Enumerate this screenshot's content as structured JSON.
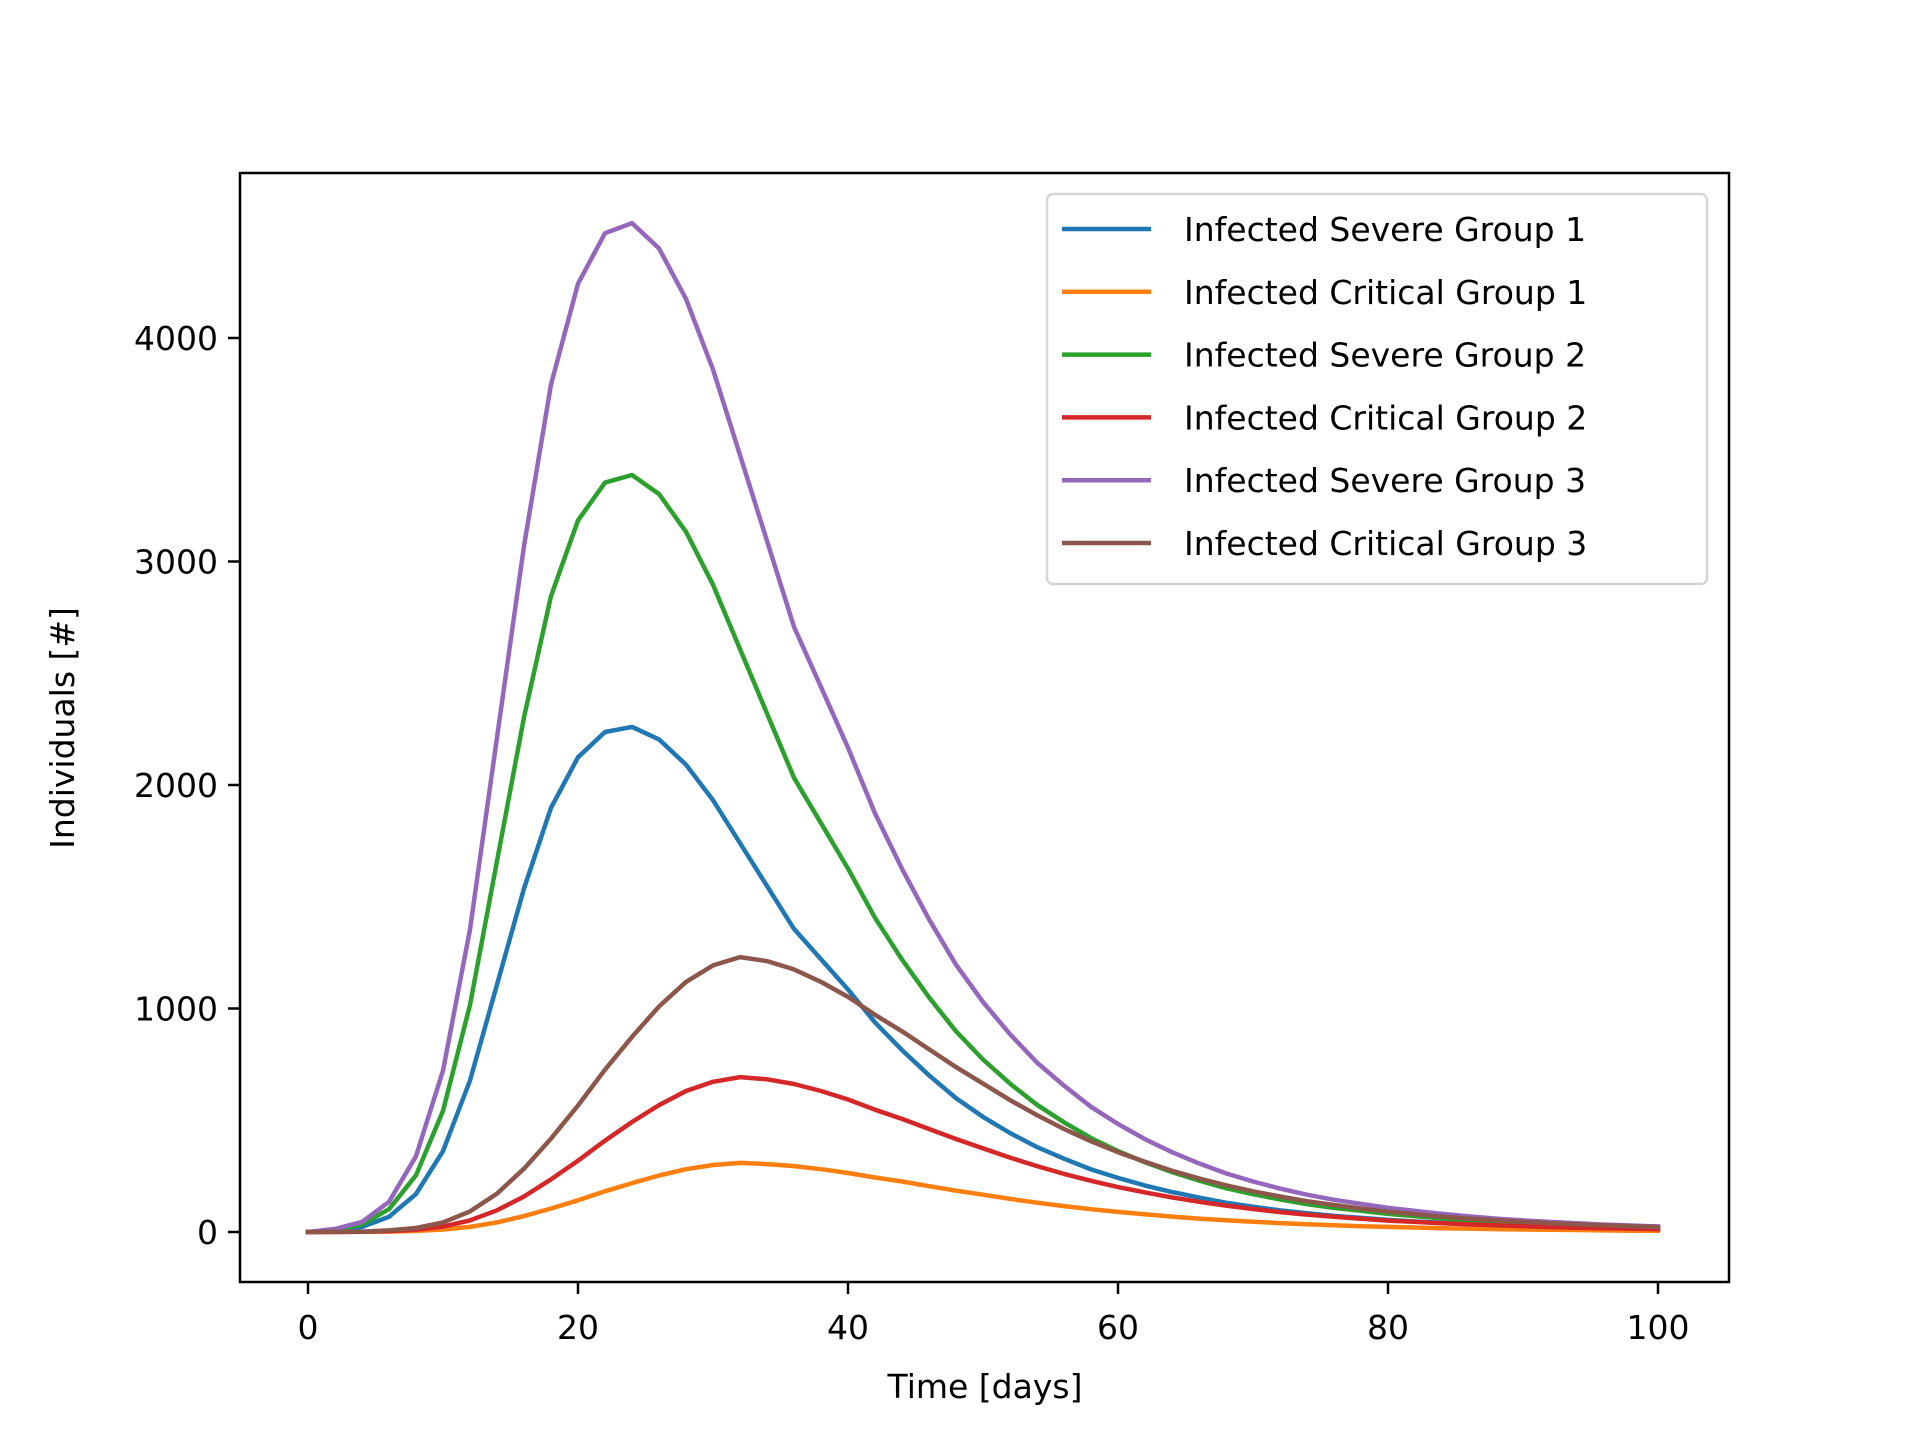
{
  "chart_data": {
    "type": "line",
    "title": "",
    "xlabel": "Time [days]",
    "ylabel": "Individuals [#]",
    "xlim": [
      -5,
      105
    ],
    "ylim": [
      -230,
      4730
    ],
    "xticks": [
      0,
      20,
      40,
      60,
      80,
      100
    ],
    "yticks": [
      0,
      1000,
      2000,
      3000,
      4000
    ],
    "grid": false,
    "legend_position": "top-right",
    "x": [
      0,
      2,
      4,
      6,
      8,
      10,
      12,
      14,
      16,
      18,
      20,
      22,
      24,
      26,
      28,
      30,
      32,
      34,
      36,
      38,
      40,
      42,
      44,
      46,
      48,
      50,
      52,
      54,
      56,
      58,
      60,
      62,
      64,
      66,
      68,
      70,
      72,
      74,
      76,
      78,
      80,
      82,
      84,
      86,
      88,
      90,
      92,
      94,
      96,
      98,
      100
    ],
    "series": [
      {
        "name": "Infected Severe Group 1",
        "color": "#1f77b4",
        "values": [
          0,
          7,
          23,
          68,
          170,
          362,
          678,
          1107,
          1537,
          1898,
          2124,
          2237,
          2260,
          2204,
          2091,
          1932,
          1740,
          1548,
          1356,
          1220,
          1085,
          938,
          814,
          701,
          599,
          515,
          443,
          380,
          328,
          280,
          242,
          208,
          179,
          154,
          131,
          113,
          97,
          84,
          72,
          63,
          54,
          47,
          41,
          35,
          30,
          26,
          22,
          19,
          17,
          14,
          12
        ]
      },
      {
        "name": "Infected Critical Group 1",
        "color": "#ff7f0e",
        "values": [
          0,
          0,
          1,
          2,
          5,
          11,
          23,
          43,
          71,
          105,
          142,
          182,
          219,
          253,
          281,
          300,
          309,
          304,
          295,
          281,
          264,
          244,
          226,
          205,
          185,
          167,
          148,
          131,
          116,
          102,
          90,
          79,
          69,
          60,
          53,
          46,
          40,
          35,
          30,
          26,
          23,
          20,
          17,
          15,
          13,
          11,
          10,
          9,
          7,
          6,
          6
        ]
      },
      {
        "name": "Infected Severe Group 2",
        "color": "#2ca02c",
        "values": [
          0,
          10,
          34,
          102,
          254,
          542,
          1016,
          1660,
          2303,
          2845,
          3184,
          3353,
          3387,
          3302,
          3133,
          2896,
          2608,
          2320,
          2032,
          1829,
          1626,
          1406,
          1219,
          1050,
          898,
          772,
          664,
          569,
          491,
          420,
          362,
          312,
          268,
          230,
          196,
          169,
          146,
          125,
          108,
          95,
          81,
          71,
          61,
          52,
          45,
          39,
          34,
          29,
          25,
          22,
          19
        ]
      },
      {
        "name": "Infected Critical Group 2",
        "color": "#d62728",
        "values": [
          0,
          0,
          1,
          4,
          10,
          24,
          52,
          97,
          159,
          236,
          319,
          409,
          492,
          568,
          631,
          672,
          693,
          683,
          662,
          631,
          593,
          547,
          506,
          461,
          416,
          374,
          333,
          295,
          260,
          229,
          201,
          177,
          155,
          135,
          118,
          103,
          89,
          78,
          68,
          59,
          51,
          45,
          39,
          34,
          30,
          26,
          22,
          19,
          17,
          15,
          12
        ]
      },
      {
        "name": "Infected Severe Group 3",
        "color": "#9467bd",
        "values": [
          0,
          14,
          45,
          135,
          339,
          722,
          1354,
          2212,
          3070,
          3792,
          4243,
          4469,
          4514,
          4401,
          4175,
          3859,
          3476,
          3092,
          2708,
          2438,
          2167,
          1873,
          1625,
          1399,
          1196,
          1029,
          885,
          758,
          655,
          560,
          483,
          415,
          357,
          307,
          262,
          226,
          194,
          167,
          144,
          126,
          108,
          95,
          81,
          70,
          60,
          52,
          45,
          39,
          33,
          29,
          25
        ]
      },
      {
        "name": "Infected Critical Group 3",
        "color": "#8c564b",
        "values": [
          0,
          1,
          2,
          7,
          18,
          43,
          92,
          172,
          283,
          418,
          566,
          726,
          873,
          1009,
          1119,
          1193,
          1230,
          1212,
          1175,
          1119,
          1052,
          972,
          898,
          818,
          738,
          664,
          590,
          523,
          461,
          406,
          357,
          314,
          274,
          240,
          209,
          182,
          159,
          138,
          121,
          105,
          91,
          80,
          69,
          60,
          53,
          46,
          39,
          34,
          30,
          26,
          22
        ]
      }
    ]
  }
}
